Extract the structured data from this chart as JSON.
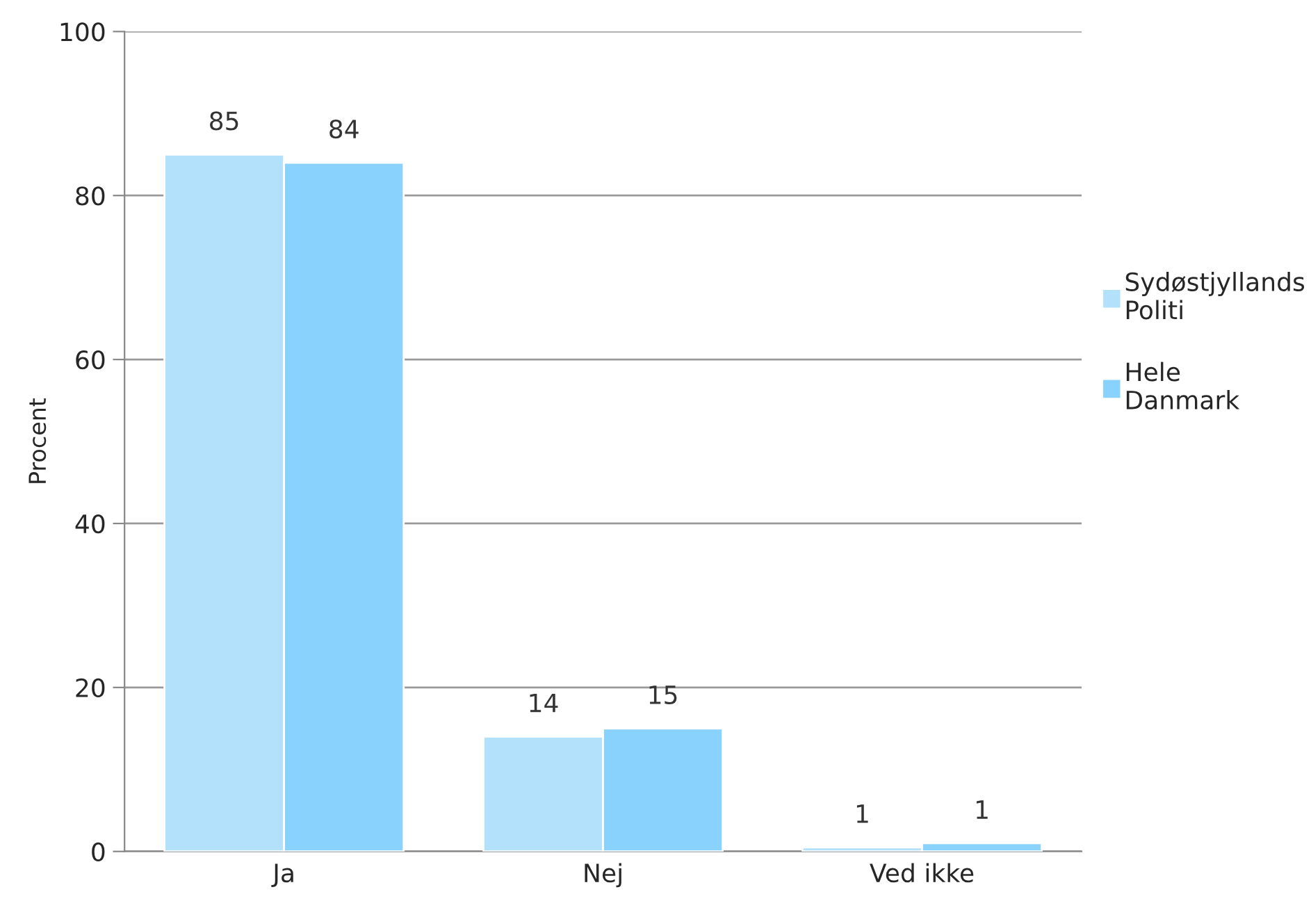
{
  "chart_data": {
    "type": "bar",
    "ylabel": "Procent",
    "categories": [
      "Ja",
      "Nej",
      "Ved ikke"
    ],
    "series": [
      {
        "name": "Sydøstjyllands Politi",
        "color": "#b3e1fb",
        "values": [
          85,
          14,
          0.5
        ],
        "value_labels": [
          "85",
          "14",
          "1"
        ]
      },
      {
        "name": "Hele Danmark",
        "color": "#88d2fd",
        "values": [
          84,
          15,
          1
        ],
        "value_labels": [
          "84",
          "15",
          "1"
        ]
      }
    ],
    "ylim": [
      0,
      100
    ],
    "yticks": [
      0,
      20,
      40,
      60,
      80,
      100
    ],
    "grid": "y",
    "legend": "right"
  }
}
